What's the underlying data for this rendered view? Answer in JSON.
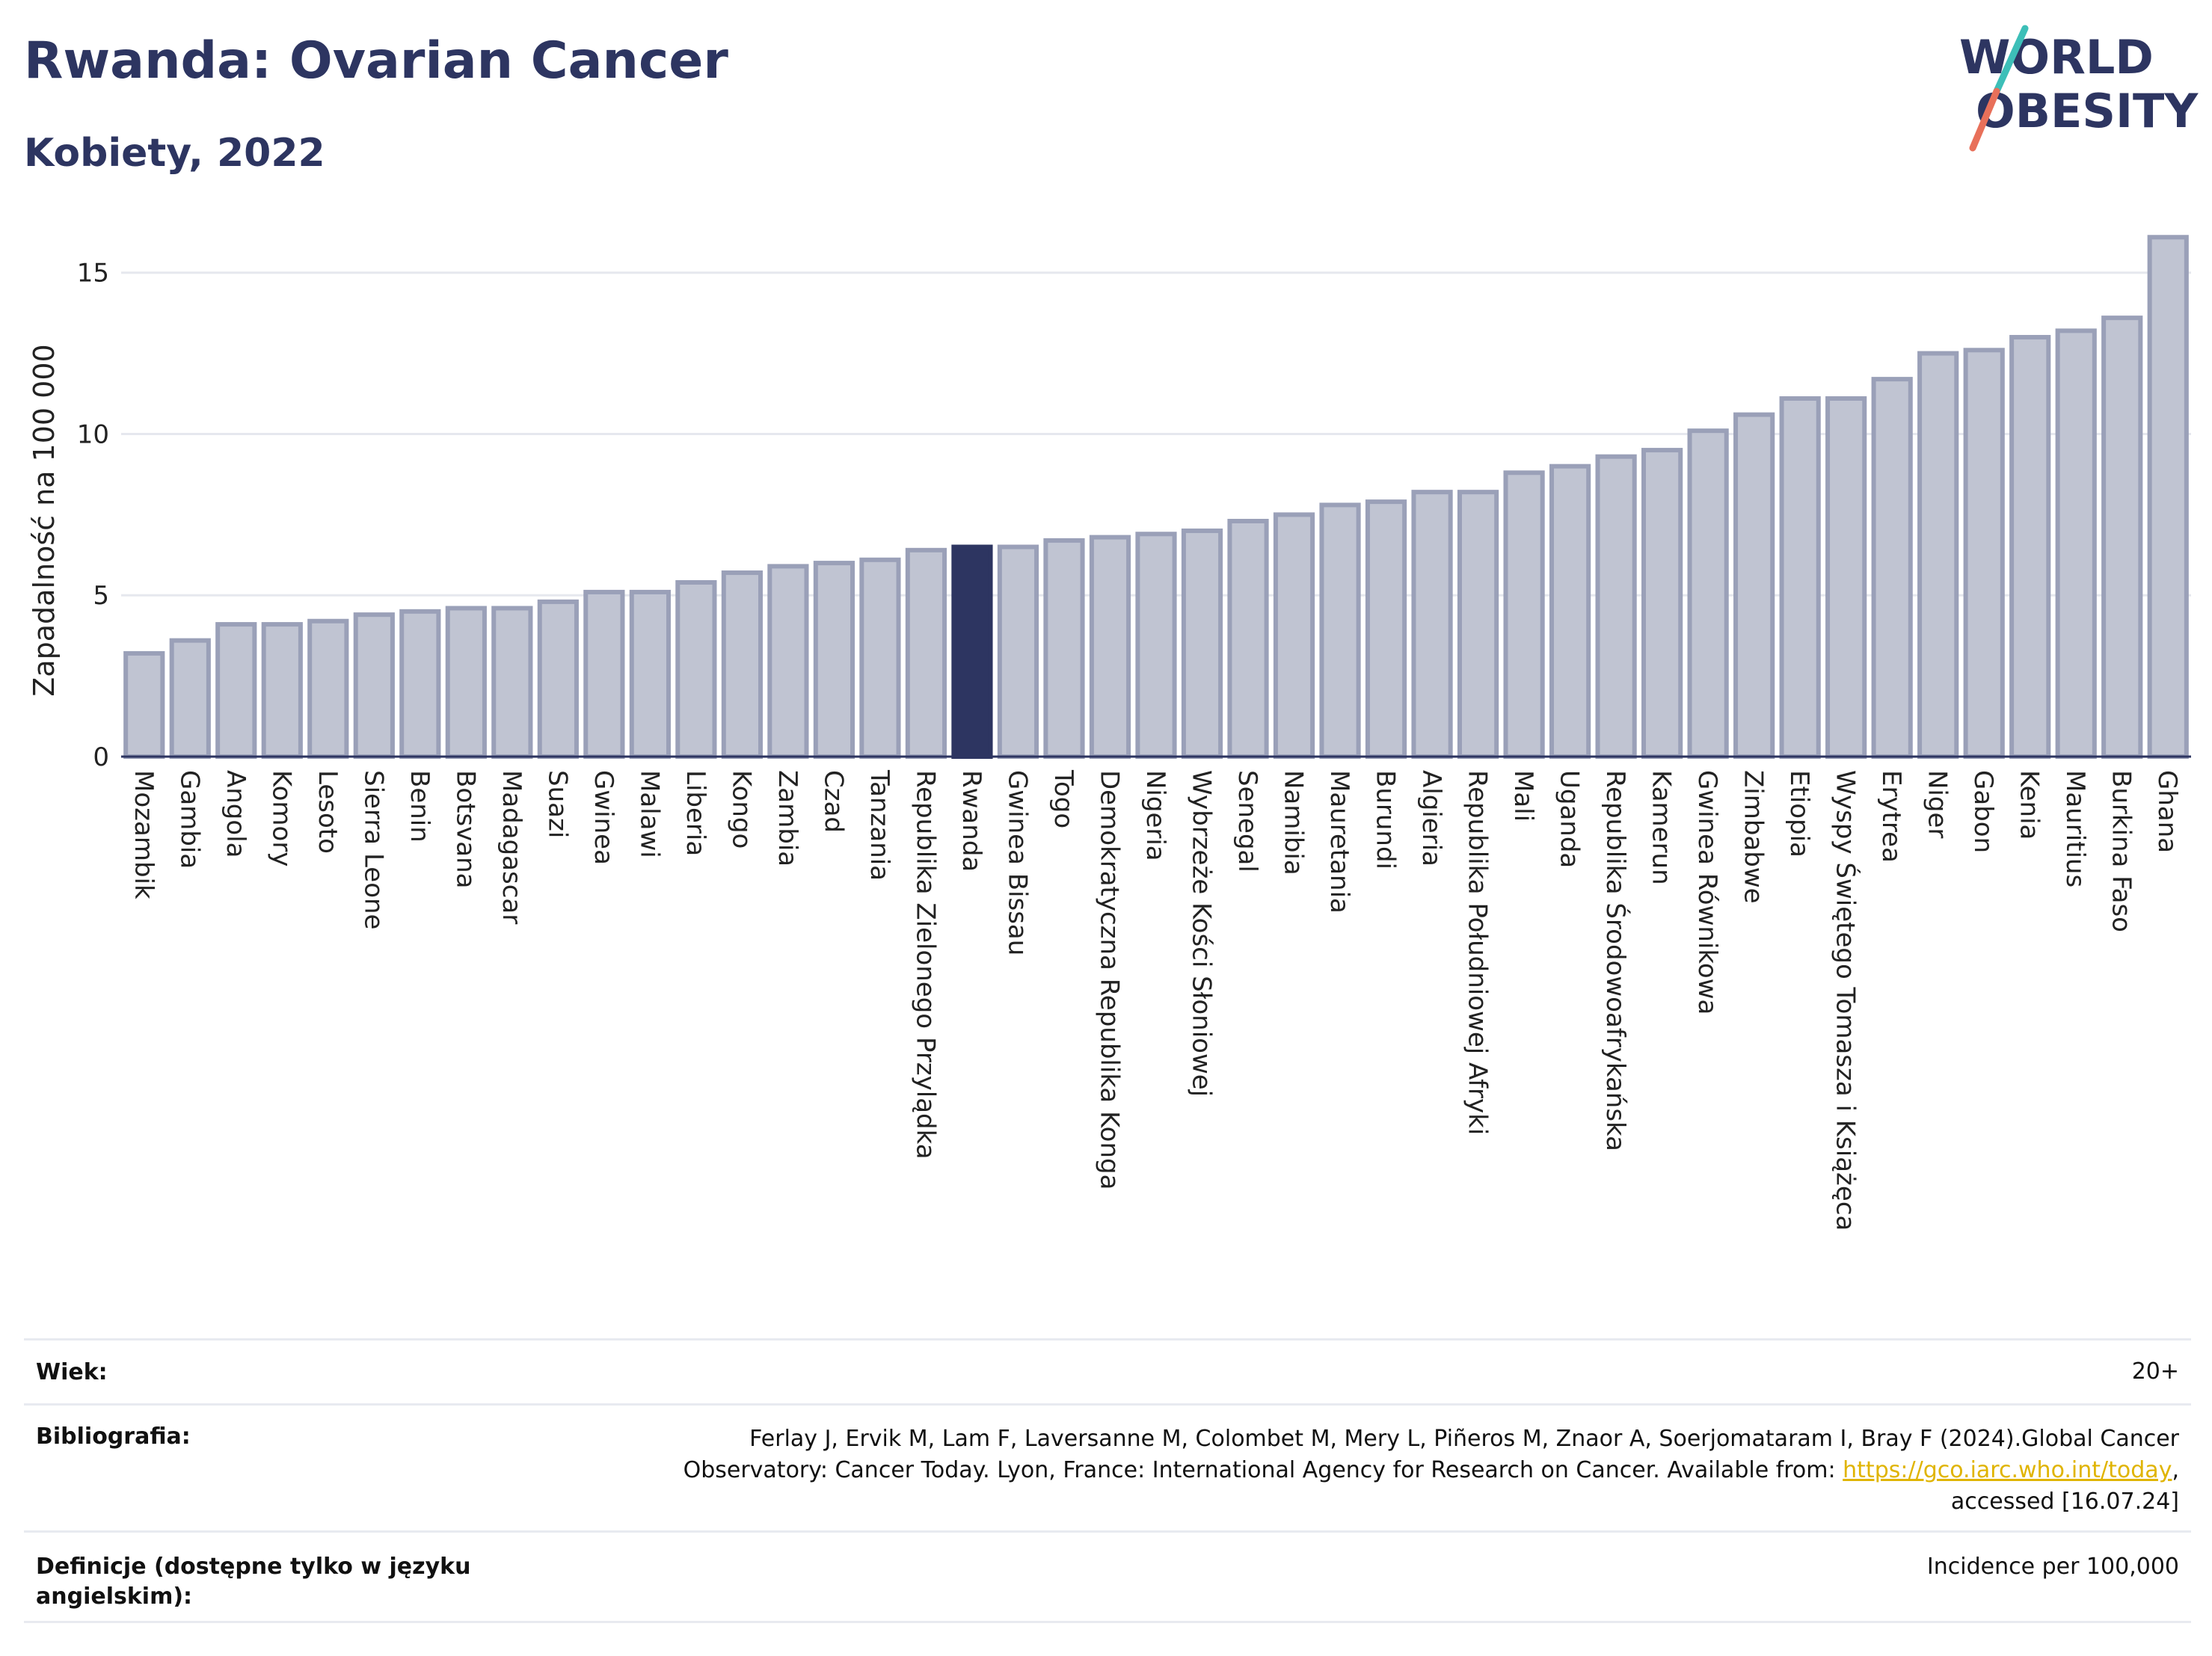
{
  "title": "Rwanda: Ovarian Cancer",
  "subtitle": "Kobiety, 2022",
  "logo": {
    "line1": "WORLD",
    "line2": "OBESITY"
  },
  "colors": {
    "bar": "#c0c4d2",
    "bar_border": "#9aa0b8",
    "highlight": "#2d3561",
    "title": "#2d3561",
    "logo_slash_top": "#3dbfb8",
    "logo_slash_bottom": "#e8705a"
  },
  "chart_data": {
    "type": "bar",
    "ylabel": "Zapadalność na 100 000",
    "ylim": [
      0,
      16.5
    ],
    "yticks": [
      0,
      5,
      10,
      15
    ],
    "grid": true,
    "highlight": "Rwanda",
    "categories": [
      "Mozambik",
      "Gambia",
      "Angola",
      "Komory",
      "Lesoto",
      "Sierra Leone",
      "Benin",
      "Botsvana",
      "Madagascar",
      "Suazi",
      "Gwinea",
      "Malawi",
      "Liberia",
      "Kongo",
      "Zambia",
      "Czad",
      "Tanzania",
      "Republika Zielonego Przylądka",
      "Rwanda",
      "Gwinea Bissau",
      "Togo",
      "Demokratyczna Republika Konga",
      "Nigeria",
      "Wybrzeże Kości Słoniowej",
      "Senegal",
      "Namibia",
      "Mauretania",
      "Burundi",
      "Algieria",
      "Republika Południowej Afryki",
      "Mali",
      "Uganda",
      "Republika Środowoafrykańska",
      "Kamerun",
      "Gwinea Równikowa",
      "Zimbabwe",
      "Etiopia",
      "Wyspy Świętego Tomasza i Książęca",
      "Erytrea",
      "Niger",
      "Gabon",
      "Kenia",
      "Mauritius",
      "Burkina Faso",
      "Ghana"
    ],
    "values": [
      3.2,
      3.6,
      4.1,
      4.1,
      4.2,
      4.4,
      4.5,
      4.6,
      4.6,
      4.8,
      5.1,
      5.1,
      5.4,
      5.7,
      5.9,
      6.0,
      6.1,
      6.4,
      6.5,
      6.5,
      6.7,
      6.8,
      6.9,
      7.0,
      7.3,
      7.5,
      7.8,
      7.9,
      8.2,
      8.2,
      8.8,
      9.0,
      9.3,
      9.5,
      10.1,
      10.6,
      11.1,
      11.1,
      11.7,
      12.5,
      12.6,
      13.0,
      13.2,
      13.6,
      16.1
    ]
  },
  "footer": {
    "age_label": "Wiek:",
    "age_value": "20+",
    "bib_label": "Bibliografia:",
    "bib_line1": "Ferlay J, Ervik M, Lam F, Laversanne M, Colombet M, Mery L, Piñeros M, Znaor A, Soerjomataram I, Bray F (2024).Global Cancer",
    "bib_line2a": "Observatory: Cancer Today. Lyon, France: International Agency for Research on Cancer. Available from: ",
    "bib_link": "https://gco.iarc.who.int/today",
    "bib_line2b": ",",
    "bib_line3": "accessed [16.07.24]",
    "def_label": "Definicje (dostępne tylko w języku angielskim):",
    "def_value": "Incidence per 100,000"
  }
}
